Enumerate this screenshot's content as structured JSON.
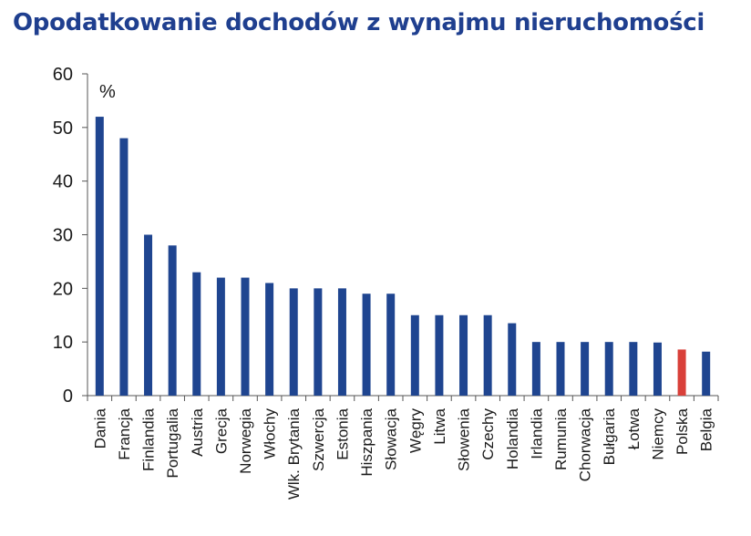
{
  "chart_data": {
    "type": "bar",
    "title": "Opodatkowanie dochodów z wynajmu nieruchomości",
    "unit_label": "%",
    "xlabel": "",
    "ylabel": "",
    "ylim": [
      0,
      60
    ],
    "yticks": [
      0,
      10,
      20,
      30,
      40,
      50,
      60
    ],
    "grid": false,
    "categories": [
      "Dania",
      "Francja",
      "Finlandia",
      "Portugalia",
      "Austria",
      "Grecja",
      "Norwegia",
      "Włochy",
      "Wlk. Brytania",
      "Szwercja",
      "Estonia",
      "Hiszpania",
      "Słowacja",
      "Węgry",
      "Litwa",
      "Słowenia",
      "Czechy",
      "Holandia",
      "Irlandia",
      "Rumunia",
      "Chorwacja",
      "Bułgaria",
      "Łotwa",
      "Niemcy",
      "Polska",
      "Belgia"
    ],
    "values": [
      52,
      48,
      30,
      28,
      23,
      22,
      22,
      21,
      20,
      20,
      20,
      19,
      19,
      15,
      15,
      15,
      15,
      13.5,
      10,
      10,
      10,
      10,
      10,
      9.9,
      8.6,
      8.2
    ],
    "colors": {
      "default": "#1f4590",
      "highlight": "#d9403a"
    },
    "highlight": "Polska"
  }
}
